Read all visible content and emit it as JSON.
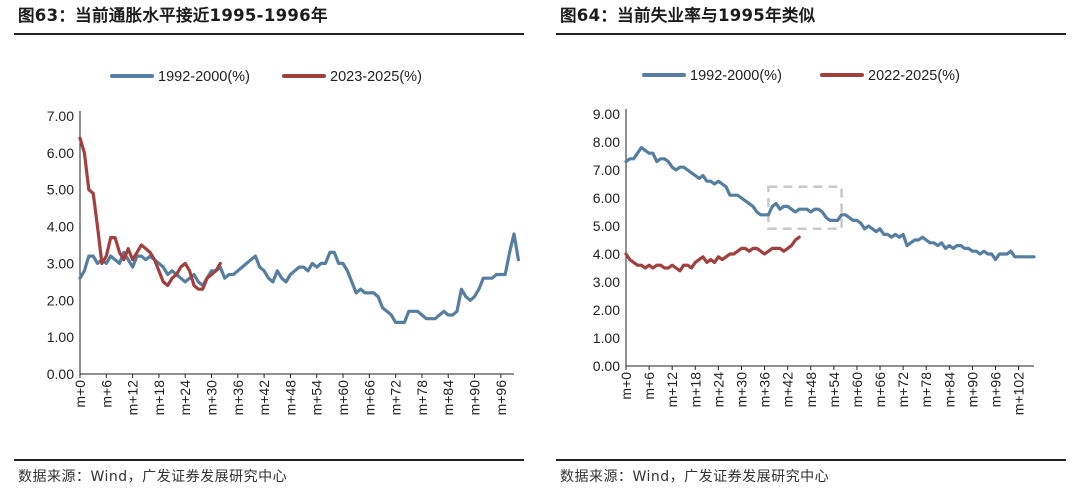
{
  "colors": {
    "series_a": "#557ea0",
    "series_b": "#a2403d",
    "rule": "#222222",
    "dash_box": "#c9c9c9"
  },
  "chart_data": [
    {
      "type": "line",
      "panel_title": "图63：当前通胀水平接近1995-1996年",
      "source": "数据来源：Wind，广发证券发展研究中心",
      "ylim": [
        0,
        7
      ],
      "yticks": [
        "0.00",
        "1.00",
        "2.00",
        "3.00",
        "4.00",
        "5.00",
        "6.00",
        "7.00"
      ],
      "x_length": 100,
      "xticks": [
        "m+0",
        "m+6",
        "m+12",
        "m+18",
        "m+24",
        "m+30",
        "m+36",
        "m+42",
        "m+48",
        "m+54",
        "m+60",
        "m+66",
        "m+72",
        "m+78",
        "m+84",
        "m+90",
        "m+96"
      ],
      "legend_position": "top-center",
      "series": [
        {
          "name": "1992-2000(%)",
          "values": [
            2.6,
            2.8,
            3.2,
            3.2,
            3.0,
            3.1,
            3.0,
            3.2,
            3.1,
            3.0,
            3.3,
            3.1,
            2.9,
            3.2,
            3.2,
            3.1,
            3.2,
            3.1,
            3.0,
            2.9,
            2.7,
            2.8,
            2.7,
            2.6,
            2.5,
            2.6,
            2.7,
            2.5,
            2.4,
            2.6,
            2.8,
            2.8,
            2.9,
            2.6,
            2.7,
            2.7,
            2.8,
            2.9,
            3.0,
            3.1,
            3.2,
            2.9,
            2.8,
            2.6,
            2.5,
            2.8,
            2.6,
            2.5,
            2.7,
            2.8,
            2.9,
            2.9,
            2.8,
            3.0,
            2.9,
            3.0,
            3.0,
            3.3,
            3.3,
            3.0,
            3.0,
            2.8,
            2.5,
            2.2,
            2.3,
            2.2,
            2.2,
            2.2,
            2.1,
            1.8,
            1.7,
            1.6,
            1.4,
            1.4,
            1.4,
            1.7,
            1.7,
            1.7,
            1.6,
            1.5,
            1.5,
            1.5,
            1.6,
            1.7,
            1.6,
            1.6,
            1.7,
            2.3,
            2.1,
            2.0,
            2.1,
            2.3,
            2.6,
            2.6,
            2.6,
            2.7,
            2.7,
            2.7,
            3.3,
            3.8,
            3.1
          ]
        },
        {
          "name": "2023-2025(%)",
          "values": [
            6.4,
            6.0,
            5.0,
            4.9,
            4.0,
            3.0,
            3.2,
            3.7,
            3.7,
            3.3,
            3.1,
            3.4,
            3.1,
            3.3,
            3.5,
            3.4,
            3.3,
            3.1,
            2.8,
            2.5,
            2.4,
            2.6,
            2.7,
            2.9,
            3.0,
            2.8,
            2.4,
            2.3,
            2.3,
            2.6,
            2.7,
            2.8,
            3.0
          ]
        }
      ],
      "xlabel": "",
      "ylabel": ""
    },
    {
      "type": "line",
      "panel_title": "图64：当前失业率与1995年类似",
      "source": "数据来源：Wind，广发证券发展研究中心",
      "ylim": [
        0,
        9
      ],
      "yticks": [
        "0.00",
        "1.00",
        "2.00",
        "3.00",
        "4.00",
        "5.00",
        "6.00",
        "7.00",
        "8.00",
        "9.00"
      ],
      "x_length": 107,
      "xticks": [
        "m+0",
        "m+6",
        "m+12",
        "m+18",
        "m+24",
        "m+30",
        "m+36",
        "m+42",
        "m+48",
        "m+54",
        "m+60",
        "m+66",
        "m+72",
        "m+78",
        "m+84",
        "m+90",
        "m+96",
        "m+102"
      ],
      "legend_position": "top-center",
      "highlight_box": {
        "x_from": 37,
        "x_to": 56,
        "y_from": 4.9,
        "y_to": 6.4,
        "style": "dashed"
      },
      "series": [
        {
          "name": "1992-2000(%)",
          "values": [
            7.3,
            7.4,
            7.4,
            7.6,
            7.8,
            7.7,
            7.6,
            7.6,
            7.3,
            7.4,
            7.4,
            7.3,
            7.1,
            7.0,
            7.1,
            7.1,
            7.0,
            6.9,
            6.8,
            6.7,
            6.8,
            6.6,
            6.6,
            6.5,
            6.6,
            6.5,
            6.4,
            6.1,
            6.1,
            6.1,
            6.0,
            5.9,
            5.8,
            5.7,
            5.5,
            5.4,
            5.4,
            5.4,
            5.7,
            5.8,
            5.6,
            5.7,
            5.7,
            5.6,
            5.5,
            5.6,
            5.6,
            5.6,
            5.5,
            5.6,
            5.6,
            5.5,
            5.3,
            5.2,
            5.2,
            5.2,
            5.4,
            5.4,
            5.3,
            5.2,
            5.2,
            5.1,
            4.9,
            5.0,
            4.9,
            4.8,
            4.9,
            4.7,
            4.7,
            4.6,
            4.7,
            4.6,
            4.7,
            4.3,
            4.4,
            4.5,
            4.5,
            4.6,
            4.5,
            4.4,
            4.4,
            4.3,
            4.4,
            4.2,
            4.3,
            4.2,
            4.3,
            4.3,
            4.2,
            4.2,
            4.1,
            4.1,
            4.0,
            4.1,
            4.0,
            4.0,
            3.8,
            4.0,
            4.0,
            4.0,
            4.1,
            3.9,
            3.9,
            3.9,
            3.9,
            3.9,
            3.9
          ]
        },
        {
          "name": "2022-2025(%)",
          "values": [
            4.0,
            3.8,
            3.7,
            3.6,
            3.6,
            3.5,
            3.6,
            3.5,
            3.6,
            3.6,
            3.5,
            3.5,
            3.6,
            3.5,
            3.4,
            3.6,
            3.6,
            3.5,
            3.7,
            3.8,
            3.9,
            3.7,
            3.8,
            3.7,
            3.9,
            3.8,
            3.9,
            4.0,
            4.0,
            4.1,
            4.2,
            4.2,
            4.1,
            4.2,
            4.2,
            4.1,
            4.0,
            4.1,
            4.2,
            4.2,
            4.2,
            4.1,
            4.2,
            4.3,
            4.5,
            4.6
          ]
        }
      ],
      "xlabel": "",
      "ylabel": ""
    }
  ]
}
